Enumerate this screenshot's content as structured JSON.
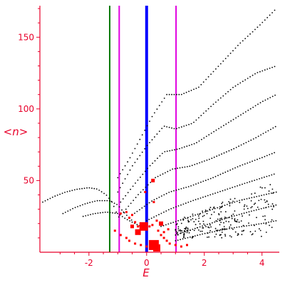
{
  "chart_data": {
    "type": "scatter",
    "xlabel": "E",
    "ylabel": "<n>",
    "xlim": [
      -3.7,
      4.6
    ],
    "ylim": [
      0,
      172
    ],
    "xticks": [
      -2,
      0,
      2,
      4
    ],
    "yticks": [
      50,
      100,
      150
    ],
    "grid": false,
    "colors": {
      "axis": "#e8002a",
      "series_black": "#000000",
      "series_red": "#ff0000",
      "line_blue": "#0000ff",
      "line_green": "#007a00",
      "line_magenta": "#e000e0"
    },
    "vertical_lines": [
      {
        "x": -1.28,
        "color": "#007a00",
        "width": 2
      },
      {
        "x": -0.95,
        "color": "#e000e0",
        "width": 2
      },
      {
        "x": 0.0,
        "color": "#0000ff",
        "width": 4
      },
      {
        "x": 1.02,
        "color": "#e000e0",
        "width": 2
      }
    ],
    "black_curves": [
      {
        "x_range": [
          -3.6,
          -0.9
        ],
        "points": [
          [
            -3.6,
            35
          ],
          [
            -3.2,
            39
          ],
          [
            -2.8,
            42
          ],
          [
            -2.4,
            44
          ],
          [
            -2.0,
            45
          ],
          [
            -1.7,
            44
          ],
          [
            -1.4,
            40
          ],
          [
            -1.2,
            35
          ],
          [
            -1.05,
            28
          ],
          [
            -0.9,
            22
          ]
        ]
      },
      {
        "x_range": [
          -2.9,
          -0.5
        ],
        "points": [
          [
            -2.9,
            27
          ],
          [
            -2.5,
            31
          ],
          [
            -2.1,
            34
          ],
          [
            -1.7,
            36
          ],
          [
            -1.3,
            36
          ],
          [
            -1.0,
            33
          ],
          [
            -0.8,
            28
          ],
          [
            -0.5,
            22
          ]
        ]
      },
      {
        "x_range": [
          -2.2,
          -0.2
        ],
        "points": [
          [
            -2.2,
            25
          ],
          [
            -1.8,
            27
          ],
          [
            -1.4,
            28
          ],
          [
            -1.0,
            27
          ],
          [
            -0.7,
            23
          ],
          [
            -0.4,
            20
          ],
          [
            -0.2,
            18
          ]
        ]
      },
      {
        "x_range": [
          -1.0,
          4.5
        ],
        "points": [
          [
            -1.0,
            52
          ],
          [
            -0.6,
            65
          ],
          [
            -0.2,
            80
          ],
          [
            0.2,
            95
          ],
          [
            0.7,
            110
          ],
          [
            1.2,
            110
          ],
          [
            1.8,
            115
          ],
          [
            2.5,
            130
          ],
          [
            3.2,
            145
          ],
          [
            3.9,
            158
          ],
          [
            4.5,
            170
          ]
        ]
      },
      {
        "x_range": [
          -1.0,
          4.5
        ],
        "points": [
          [
            -1.0,
            42
          ],
          [
            -0.5,
            60
          ],
          [
            0.0,
            74
          ],
          [
            0.6,
            88
          ],
          [
            1.0,
            86
          ],
          [
            1.6,
            90
          ],
          [
            2.3,
            103
          ],
          [
            3.0,
            115
          ],
          [
            3.8,
            125
          ],
          [
            4.5,
            130
          ]
        ]
      },
      {
        "x_range": [
          -0.9,
          4.5
        ],
        "points": [
          [
            -0.9,
            35
          ],
          [
            -0.4,
            48
          ],
          [
            0.1,
            60
          ],
          [
            0.6,
            70
          ],
          [
            1.1,
            72
          ],
          [
            1.7,
            76
          ],
          [
            2.4,
            85
          ],
          [
            3.2,
            95
          ],
          [
            4.0,
            105
          ],
          [
            4.5,
            110
          ]
        ]
      },
      {
        "x_range": [
          -0.8,
          4.5
        ],
        "points": [
          [
            -0.8,
            28
          ],
          [
            -0.3,
            40
          ],
          [
            0.3,
            52
          ],
          [
            0.9,
            58
          ],
          [
            1.5,
            60
          ],
          [
            2.2,
            65
          ],
          [
            3.0,
            72
          ],
          [
            3.8,
            80
          ],
          [
            4.5,
            88
          ]
        ]
      },
      {
        "x_range": [
          -0.5,
          4.5
        ],
        "points": [
          [
            -0.5,
            26
          ],
          [
            0.2,
            36
          ],
          [
            0.8,
            42
          ],
          [
            1.5,
            46
          ],
          [
            2.3,
            52
          ],
          [
            3.2,
            60
          ],
          [
            4.0,
            66
          ],
          [
            4.5,
            70
          ]
        ]
      },
      {
        "x_range": [
          0.0,
          4.5
        ],
        "points": [
          [
            0.0,
            22
          ],
          [
            0.8,
            30
          ],
          [
            1.6,
            36
          ],
          [
            2.5,
            42
          ],
          [
            3.4,
            48
          ],
          [
            4.5,
            55
          ]
        ]
      },
      {
        "x_range": [
          0.5,
          4.5
        ],
        "points": [
          [
            0.5,
            18
          ],
          [
            1.4,
            24
          ],
          [
            2.3,
            30
          ],
          [
            3.2,
            36
          ],
          [
            4.5,
            42
          ]
        ]
      },
      {
        "x_range": [
          1.0,
          4.5
        ],
        "points": [
          [
            1.0,
            12
          ],
          [
            1.9,
            18
          ],
          [
            2.8,
            24
          ],
          [
            3.7,
            29
          ],
          [
            4.5,
            33
          ]
        ]
      },
      {
        "x_range": [
          1.0,
          4.5
        ],
        "points": [
          [
            1.0,
            8
          ],
          [
            2.0,
            13
          ],
          [
            3.0,
            17
          ],
          [
            4.0,
            20
          ],
          [
            4.5,
            22
          ]
        ]
      }
    ],
    "black_scatter_region": {
      "x_range": [
        1.0,
        4.5
      ],
      "y_range": [
        10,
        50
      ]
    },
    "red_points": [
      [
        -0.9,
        27
      ],
      [
        -0.7,
        28
      ],
      [
        -0.5,
        26
      ],
      [
        -0.6,
        24
      ],
      [
        -0.4,
        21
      ],
      [
        -0.3,
        18
      ],
      [
        -0.2,
        17
      ],
      [
        -0.1,
        16
      ],
      [
        0.0,
        17
      ],
      [
        0.1,
        18
      ],
      [
        0.2,
        19
      ],
      [
        0.25,
        35
      ],
      [
        0.22,
        50
      ],
      [
        -0.05,
        42
      ],
      [
        0.35,
        22
      ],
      [
        0.4,
        15
      ],
      [
        0.5,
        12
      ],
      [
        0.6,
        10
      ],
      [
        0.7,
        8
      ],
      [
        0.8,
        6
      ],
      [
        1.0,
        5
      ],
      [
        1.2,
        4
      ],
      [
        1.4,
        5
      ],
      [
        -1.1,
        15
      ],
      [
        -0.9,
        12
      ],
      [
        -0.7,
        10
      ],
      [
        -0.6,
        8
      ],
      [
        -0.4,
        6
      ],
      [
        -0.2,
        5
      ],
      [
        0.0,
        4
      ],
      [
        0.15,
        3
      ],
      [
        0.3,
        3
      ],
      [
        0.6,
        14
      ],
      [
        0.75,
        16
      ]
    ],
    "red_large_points": [
      {
        "x": -0.1,
        "y": 18,
        "size": 12
      },
      {
        "x": 0.25,
        "y": 5,
        "size": 14
      },
      {
        "x": 0.35,
        "y": 3,
        "size": 10
      },
      {
        "x": -0.3,
        "y": 14,
        "size": 8
      },
      {
        "x": 0.22,
        "y": 50,
        "size": 5
      },
      {
        "x": 0.5,
        "y": 20,
        "size": 6
      },
      {
        "x": -0.5,
        "y": 18,
        "size": 5
      }
    ]
  }
}
